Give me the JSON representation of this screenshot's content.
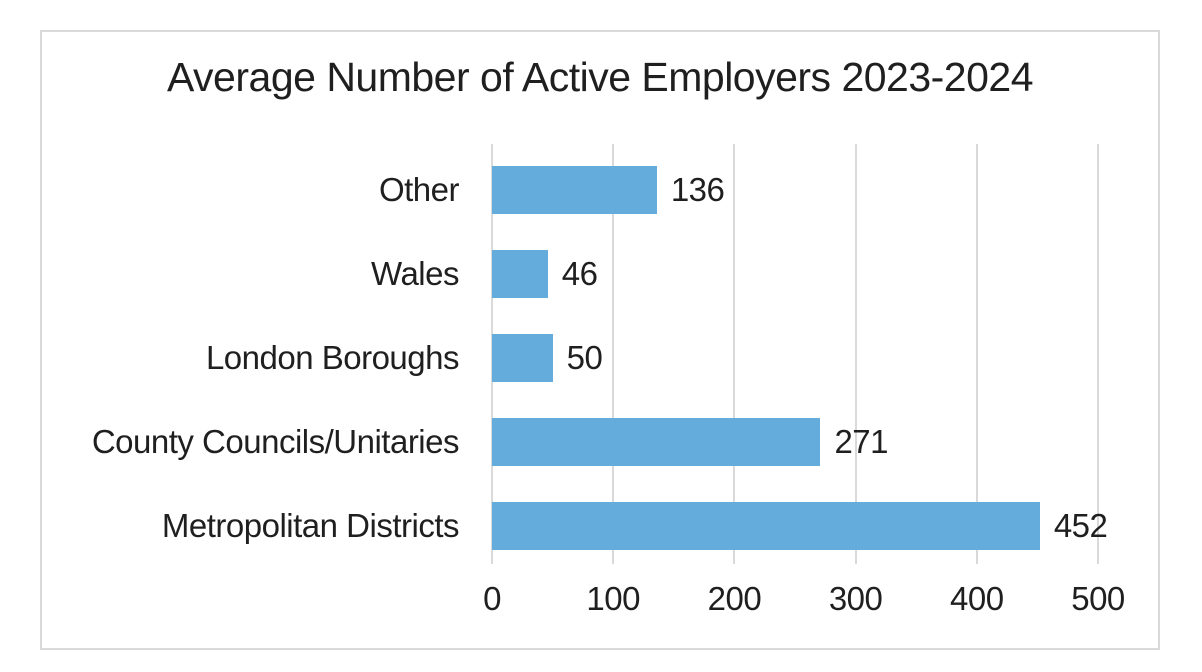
{
  "chart_data": {
    "type": "bar",
    "orientation": "horizontal",
    "title": "Average Number of Active Employers 2023-2024",
    "categories": [
      "Other",
      "Wales",
      "London Boroughs",
      "County Councils/Unitaries",
      "Metropolitan Districts"
    ],
    "values": [
      136,
      46,
      50,
      271,
      452
    ],
    "data_labels": [
      "136",
      "46",
      "50",
      "271",
      "452"
    ],
    "x_ticks": [
      "0",
      "100",
      "200",
      "300",
      "400",
      "500"
    ],
    "xlim": [
      0,
      500
    ],
    "xlabel": "",
    "ylabel": "",
    "grid": "vertical-gridlines-only",
    "legend": "none",
    "colors": {
      "bar": "#64ACDB",
      "gridline": "#D9D9D9",
      "frame_border": "#D9D9D9",
      "text": "#1F1F1F",
      "background": "#FFFFFF"
    }
  }
}
